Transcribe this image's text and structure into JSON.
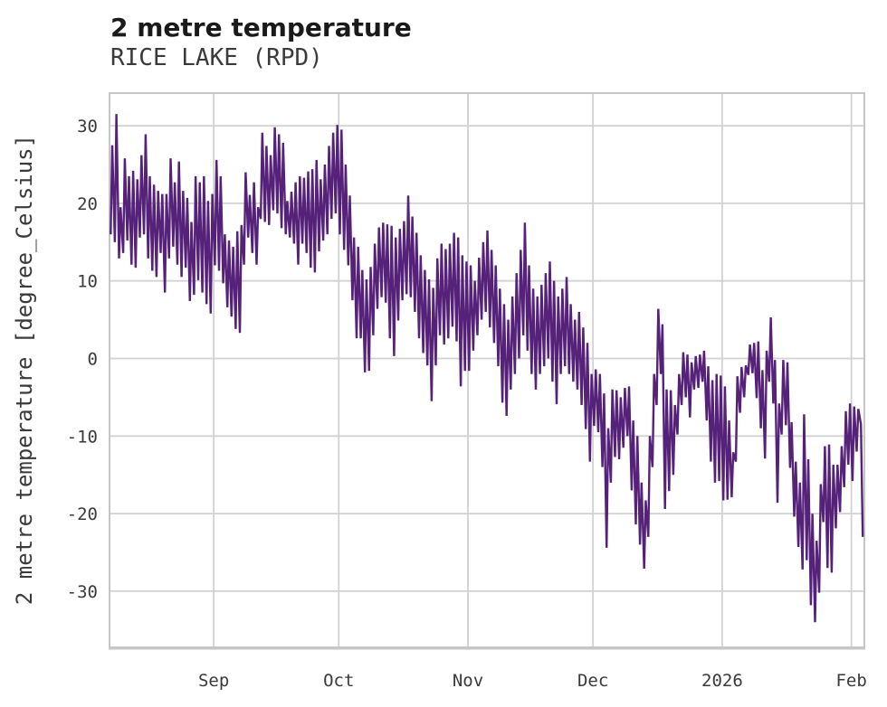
{
  "chart_data": {
    "type": "line",
    "title": "2 metre temperature",
    "subtitle": "RICE LAKE (RPD)",
    "ylabel": "2 metre temperature [degree_Celsius]",
    "xlabel": "",
    "series_name": "2 metre temperature",
    "line_color": "#552179",
    "grid_color": "#d2d2d2",
    "spine_color": "#c6c6c6",
    "tick_label_color": "#3a3a3a",
    "grid": true,
    "legend": false,
    "ylim": [
      -37.2,
      34.2
    ],
    "y_ticks": [
      30,
      20,
      10,
      0,
      -10,
      -20,
      -30
    ],
    "x_ticks": [
      {
        "label": "Sep",
        "day": 25
      },
      {
        "label": "Oct",
        "day": 55
      },
      {
        "label": "Nov",
        "day": 86
      },
      {
        "label": "Dec",
        "day": 116
      },
      {
        "label": "2026",
        "day": 147
      },
      {
        "label": "Feb",
        "day": 178
      }
    ],
    "x_start_date": "2025-08-07",
    "x_end_date": "2026-02-03",
    "resolution_note": "daily min/max envelope read from dense hourly trace",
    "daily_min": [
      16,
      15,
      12.9,
      13.6,
      15.2,
      12.1,
      11.7,
      15.6,
      16,
      12.9,
      11.3,
      10.5,
      13.6,
      8.5,
      12.9,
      14.4,
      12.1,
      10.5,
      11.7,
      7.4,
      8.2,
      10.1,
      8.5,
      7,
      5.8,
      12,
      11.3,
      9.7,
      6.6,
      5.4,
      3.8,
      3.3,
      12.1,
      15.6,
      13.6,
      12.1,
      18,
      17.6,
      17.2,
      19.1,
      18.7,
      16.8,
      16,
      15.6,
      14.8,
      12.1,
      14.8,
      13.6,
      11.7,
      11.1,
      13.8,
      15.2,
      16,
      18,
      18.7,
      16,
      14,
      12,
      7.5,
      2.6,
      2.6,
      -1.8,
      -1.6,
      3,
      6.4,
      7.9,
      7.2,
      2.6,
      0.3,
      4.9,
      7.5,
      8.3,
      7.9,
      6,
      2.6,
      0.7,
      -0.9,
      -5.5,
      -0.9,
      3,
      1.8,
      2.6,
      4.1,
      2.2,
      -3.6,
      -1.6,
      -1.6,
      1,
      3,
      5,
      6,
      4,
      2,
      -1,
      -5.7,
      -7.4,
      -4,
      -2,
      0,
      3,
      1,
      -2,
      -4,
      -2,
      -1,
      0,
      -3,
      -5.9,
      -2,
      -1,
      -2,
      -3,
      -4,
      -6,
      -9.1,
      -13.3,
      -8.7,
      -9.5,
      -14,
      -24.4,
      -16,
      -12.7,
      -13,
      -11.5,
      -10,
      -17,
      -21.4,
      -24,
      -27.1,
      -23,
      -14,
      -6,
      -2,
      -19.4,
      -17.1,
      -15,
      -9.8,
      -6,
      -5,
      -7.6,
      -4,
      -3.8,
      -3,
      -8,
      -13.3,
      -16,
      -15.8,
      -18.3,
      -18.2,
      -17.9,
      -13.3,
      -7,
      -5,
      -2.1,
      -1.9,
      -5.1,
      -9,
      -12.9,
      -3,
      -5.8,
      -18.6,
      -9.8,
      -8.6,
      -14.1,
      -20.4,
      -24.3,
      -27.2,
      -26,
      -31.8,
      -34,
      -30.2,
      -21.1,
      -27,
      -27.6,
      -21.9,
      -19.8,
      -16.6,
      -13.7,
      -15.8,
      -12,
      -23
    ],
    "daily_max": [
      27.5,
      31.5,
      19.5,
      25.8,
      23.5,
      24.2,
      23.1,
      26.2,
      28.9,
      23.5,
      22.4,
      21.6,
      21.2,
      21.2,
      25.8,
      22.7,
      25.4,
      21.6,
      20.7,
      17.6,
      23.5,
      22.7,
      23.5,
      20.3,
      21.2,
      25.6,
      23.5,
      16,
      15.2,
      14.4,
      16.4,
      17.2,
      24,
      21.1,
      22.7,
      19.5,
      29.1,
      27.4,
      26.2,
      29.8,
      28.9,
      27.8,
      20.3,
      21.5,
      22.7,
      23.5,
      23.3,
      24.1,
      24.4,
      25.6,
      23.1,
      25,
      27.4,
      29.1,
      30.1,
      29.5,
      25,
      21,
      15.6,
      14.4,
      11.4,
      10.2,
      11.8,
      14.8,
      16.9,
      17.5,
      17.3,
      17.1,
      15.6,
      16.7,
      17.7,
      21,
      18.3,
      16.2,
      13.3,
      11.4,
      10.2,
      9.1,
      12.9,
      14.8,
      14.1,
      14.8,
      16.2,
      15.6,
      13.3,
      12.5,
      12,
      10,
      13,
      15,
      16.5,
      14,
      12,
      9,
      7,
      5,
      8,
      11,
      14,
      17.5,
      12,
      9,
      8,
      9.5,
      11,
      12.5,
      10,
      8,
      9,
      10.5,
      7,
      5,
      6,
      4,
      2,
      -2,
      -1.4,
      -2,
      -4.5,
      -9,
      -4,
      -4.1,
      -5,
      -3.8,
      -3.6,
      -8,
      -10,
      -16,
      -18.3,
      -10,
      -2,
      6.4,
      4.4,
      -4,
      -4.1,
      -6,
      -2,
      0.8,
      0.5,
      -0.5,
      0.3,
      0.5,
      1,
      -1,
      -2.8,
      -2,
      -2.2,
      -3.6,
      -8,
      -12.1,
      -2.3,
      -1.1,
      -0.9,
      1.8,
      2,
      2.2,
      -1.5,
      1,
      5.3,
      -0.2,
      -5.8,
      -0.2,
      -0.5,
      -8.2,
      -13.3,
      -16,
      -7.2,
      -13,
      -20,
      -23.5,
      -16.2,
      -11.3,
      -11.1,
      -13.7,
      -13.7,
      -11.3,
      -6.8,
      -5.8,
      -6.2,
      -6.5,
      -8.5
    ]
  }
}
